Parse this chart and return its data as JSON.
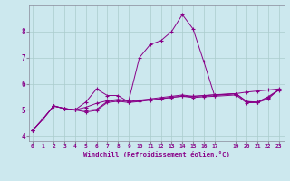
{
  "xlabel": "Windchill (Refroidissement éolien,°C)",
  "background_color": "#cce8ee",
  "grid_color": "#aacccc",
  "line_color": "#880088",
  "x_ticks": [
    0,
    1,
    2,
    3,
    4,
    5,
    6,
    7,
    8,
    9,
    10,
    11,
    12,
    13,
    14,
    15,
    16,
    17,
    19,
    20,
    21,
    22,
    23
  ],
  "ylim": [
    3.8,
    9.0
  ],
  "xlim": [
    -0.3,
    23.5
  ],
  "yticks": [
    4,
    5,
    6,
    7,
    8
  ],
  "series": [
    [
      4.2,
      4.65,
      5.15,
      5.05,
      5.0,
      5.3,
      5.8,
      5.55,
      5.55,
      5.3,
      5.35,
      5.38,
      5.42,
      5.48,
      5.52,
      5.52,
      5.55,
      5.58,
      5.62,
      5.68,
      5.72,
      5.76,
      5.8
    ],
    [
      4.2,
      4.65,
      5.15,
      5.05,
      5.0,
      5.1,
      5.25,
      5.35,
      5.4,
      5.35,
      7.0,
      7.5,
      7.65,
      8.0,
      8.65,
      8.1,
      6.85,
      5.55,
      5.62,
      5.32,
      5.28,
      5.42,
      5.78
    ],
    [
      4.2,
      4.65,
      5.15,
      5.05,
      5.0,
      4.92,
      4.98,
      5.28,
      5.33,
      5.28,
      5.32,
      5.37,
      5.42,
      5.48,
      5.52,
      5.47,
      5.5,
      5.52,
      5.57,
      5.27,
      5.28,
      5.48,
      5.75
    ],
    [
      4.2,
      4.65,
      5.15,
      5.05,
      5.0,
      4.98,
      5.02,
      5.32,
      5.37,
      5.32,
      5.37,
      5.42,
      5.47,
      5.52,
      5.57,
      5.52,
      5.54,
      5.57,
      5.62,
      5.32,
      5.3,
      5.5,
      5.77
    ]
  ]
}
